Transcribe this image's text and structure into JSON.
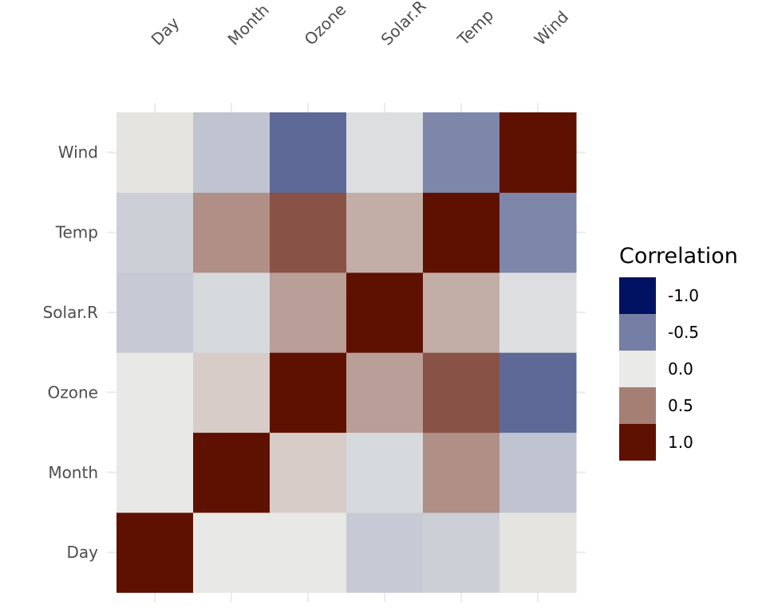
{
  "chart_data": {
    "type": "heatmap",
    "x_categories": [
      "Day",
      "Month",
      "Ozone",
      "Solar.R",
      "Temp",
      "Wind"
    ],
    "y_categories": [
      "Day",
      "Month",
      "Ozone",
      "Solar.R",
      "Temp",
      "Wind"
    ],
    "values": [
      [
        1.0,
        -0.01,
        -0.01,
        -0.15,
        -0.13,
        0.03
      ],
      [
        -0.01,
        1.0,
        0.14,
        -0.08,
        0.42,
        -0.18
      ],
      [
        -0.01,
        0.14,
        1.0,
        0.35,
        0.7,
        -0.6
      ],
      [
        -0.15,
        -0.08,
        0.35,
        1.0,
        0.28,
        -0.06
      ],
      [
        -0.13,
        0.42,
        0.7,
        0.28,
        1.0,
        -0.46
      ],
      [
        0.03,
        -0.18,
        -0.6,
        -0.06,
        -0.46,
        1.0
      ]
    ],
    "value_layout": "values[y_index][x_index]",
    "x_axis_position": "top",
    "grid": true,
    "legend": {
      "title": "Correlation",
      "placement": "right",
      "breaks": [
        "-1.0",
        "-0.5",
        "0.0",
        "0.5",
        "1.0"
      ],
      "break_values": [
        -1.0,
        -0.5,
        0.0,
        0.5,
        1.0
      ]
    },
    "color_scale": {
      "low": "#001261",
      "mid": "#eaebe8",
      "high": "#5f1100",
      "range": [
        -1,
        1
      ]
    }
  }
}
